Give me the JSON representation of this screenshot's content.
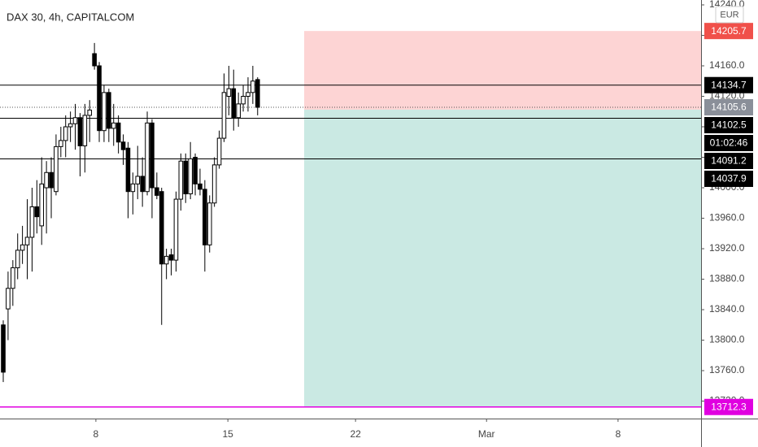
{
  "chart_data": {
    "type": "candlestick",
    "title": "DAX 30, 4h, CAPITALCOM",
    "currency": "EUR",
    "x": [
      0,
      1,
      2,
      3,
      4,
      5,
      6,
      7,
      8,
      9,
      10,
      11,
      12,
      13,
      14,
      15,
      16,
      17,
      18,
      19,
      20,
      21,
      22,
      23,
      24,
      25,
      26,
      27,
      28,
      29,
      30,
      31,
      32,
      33,
      34,
      35,
      36,
      37,
      38,
      39,
      40,
      41,
      42,
      43,
      44,
      45,
      46,
      47,
      48,
      49,
      50,
      51,
      52,
      53
    ],
    "open": [
      13820,
      13841,
      13868,
      13895,
      13918,
      13925,
      13935,
      13975,
      13950,
      14000,
      14020,
      13995,
      14054,
      14062,
      14080,
      14084,
      14092,
      14055,
      14095,
      14176,
      14160,
      14075,
      14125,
      14078,
      14085,
      14060,
      14052,
      13995,
      14005,
      14015,
      13995,
      14085,
      14000,
      13995,
      13900,
      13912,
      13905,
      13985,
      14035,
      13992,
      14040,
      14005,
      13998,
      13925,
      13980,
      14030,
      14065,
      14120,
      14130,
      14092,
      14110,
      14120,
      14125,
      14142
    ],
    "high": [
      13826,
      13890,
      13905,
      13940,
      13950,
      13985,
      14000,
      14010,
      14040,
      14035,
      14040,
      14070,
      14080,
      14095,
      14100,
      14110,
      14098,
      14110,
      14115,
      14190,
      14165,
      14135,
      14130,
      14110,
      14095,
      14070,
      14060,
      14020,
      14055,
      14040,
      14100,
      14090,
      14020,
      14000,
      13920,
      13920,
      13995,
      14045,
      14045,
      14060,
      14045,
      14025,
      14010,
      13990,
      14040,
      14075,
      14150,
      14160,
      14155,
      14125,
      14135,
      14145,
      14160,
      14145
    ],
    "low": [
      13745,
      13800,
      13845,
      13880,
      13900,
      13880,
      13890,
      13940,
      13925,
      13940,
      13960,
      13990,
      14040,
      14040,
      14060,
      14050,
      14015,
      14020,
      14060,
      14155,
      14060,
      14060,
      14060,
      14055,
      14045,
      14030,
      13960,
      13965,
      13985,
      13975,
      13990,
      13960,
      13985,
      13820,
      13880,
      13885,
      13890,
      13970,
      13980,
      13985,
      13990,
      13990,
      13890,
      13915,
      13975,
      14025,
      14060,
      14095,
      14075,
      14080,
      14100,
      14100,
      14110,
      14095
    ],
    "close": [
      13758,
      13868,
      13895,
      13918,
      13925,
      13935,
      13975,
      13962,
      14005,
      14020,
      14000,
      14054,
      14062,
      14080,
      14084,
      14092,
      14055,
      14095,
      14102,
      14160,
      14075,
      14125,
      14078,
      14085,
      14060,
      14050,
      13995,
      14005,
      14015,
      13995,
      14085,
      14000,
      13990,
      13900,
      13910,
      13905,
      13985,
      14035,
      13992,
      14038,
      14005,
      13998,
      13925,
      13980,
      14030,
      14065,
      14125,
      14130,
      14092,
      14110,
      14120,
      14125,
      14140,
      14105.6
    ],
    "xlim": [
      -0.68,
      145.4
    ],
    "xticks": [
      {
        "value": 19.3,
        "label": "8"
      },
      {
        "value": 46.8,
        "label": "15"
      },
      {
        "value": 73.4,
        "label": "22"
      },
      {
        "value": 100.7,
        "label": "Mar"
      },
      {
        "value": 128.1,
        "label": "8"
      }
    ],
    "ylim": [
      13697.1,
      14246.4
    ],
    "yticks": [
      {
        "value": 13720,
        "label": "13720.0"
      },
      {
        "value": 13760,
        "label": "13760.0"
      },
      {
        "value": 13800,
        "label": "13800.0"
      },
      {
        "value": 13840,
        "label": "13840.0"
      },
      {
        "value": 13880,
        "label": "13880.0"
      },
      {
        "value": 13920,
        "label": "13920.0"
      },
      {
        "value": 13960,
        "label": "13960.0"
      },
      {
        "value": 14000,
        "label": "14000.0"
      },
      {
        "value": 14040,
        "label": "14040.0"
      },
      {
        "value": 14080,
        "label": "14080.0"
      },
      {
        "value": 14120,
        "label": "14120.0"
      },
      {
        "value": 14160,
        "label": "14160.0"
      },
      {
        "value": 14200,
        "label": "14200.0"
      },
      {
        "value": 14240,
        "label": "14240.0"
      }
    ],
    "levels": [
      14134.7,
      14091.2,
      14037.9
    ],
    "last_price": 14105.6,
    "countdown": "01:02:46",
    "position": {
      "start": 62.7,
      "stop": 14205.7,
      "entry": 14102.5,
      "target": 13712.3
    }
  }
}
